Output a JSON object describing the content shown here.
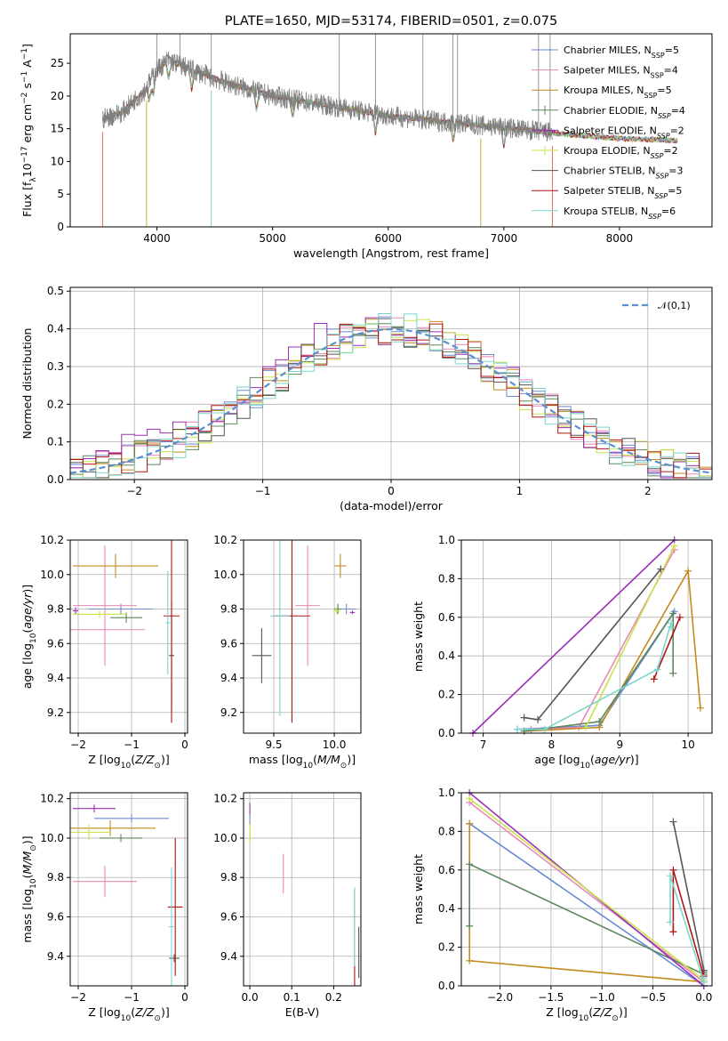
{
  "figure_title": "PLATE=1650, MJD=53174, FIBERID=0501, z=0.075",
  "series_colors": [
    "#6a8ad4",
    "#e889b6",
    "#c48a1c",
    "#5c875c",
    "#9a2fb8",
    "#c9e34a",
    "#555555",
    "#b01313",
    "#7cd5cc"
  ],
  "legend_labels": [
    "Chabrier MILES, N_SSP=5",
    "Salpeter MILES, N_SSP=4",
    "Kroupa MILES, N_SSP=5",
    "Chabrier ELODIE, N_SSP=4",
    "Salpeter ELODIE, N_SSP=2",
    "Kroupa ELODIE, N_SSP=2",
    "Chabrier STELIB, N_SSP=3",
    "Salpeter STELIB, N_SSP=5",
    "Kroupa STELIB, N_SSP=6"
  ],
  "chart_data": [
    {
      "id": "spectrum",
      "type": "line",
      "xlabel": "wavelength [Angstrom, rest frame]",
      "ylabel": "Flux [f_λ 10^-17 erg cm^-2 s^-1 A^-1]",
      "xlim": [
        3250,
        8800
      ],
      "ylim": [
        0,
        29.5
      ],
      "xticks": [
        4000,
        5000,
        6000,
        7000,
        8000
      ],
      "yticks": [
        0,
        5,
        10,
        15,
        20,
        25
      ],
      "grid": false,
      "legend": "top-right",
      "continuum_x": [
        3530,
        3700,
        3900,
        4000,
        4100,
        4300,
        4600,
        5000,
        5500,
        6000,
        6500,
        7000,
        7500,
        8000,
        8500
      ],
      "continuum_y": [
        16.5,
        17.5,
        21,
        24,
        25.5,
        24,
        22,
        20,
        18.5,
        17,
        16,
        15.2,
        14.2,
        13.5,
        13.2
      ],
      "absorption_lines": [
        3934,
        3968,
        4102,
        4300,
        4861,
        5175,
        5890,
        6563,
        7000
      ],
      "emission_lines": [
        4000,
        4200,
        4470,
        5577,
        5890,
        6300,
        6560,
        6600,
        7300,
        7400
      ]
    },
    {
      "id": "residuals",
      "type": "area",
      "xlabel": "(data-model)/error",
      "ylabel": "Normed distribution",
      "xlim": [
        -2.5,
        2.5
      ],
      "ylim": [
        0,
        0.51
      ],
      "xticks": [
        -2,
        -1,
        0,
        1,
        2
      ],
      "yticks": [
        0,
        0.1,
        0.2,
        0.3,
        0.4,
        0.5
      ],
      "grid": true,
      "legend": "top-right",
      "reference_label": "𝒩(0,1)"
    },
    {
      "id": "age-vs-Z",
      "type": "scatter",
      "xlabel": "Z [log10(Z/Z⊙)]",
      "ylabel": "age [log10(age/yr)]",
      "xlim": [
        -2.15,
        0.05
      ],
      "ylim": [
        9.08,
        10.2
      ],
      "xticks": [
        -2,
        -1,
        0
      ],
      "yticks": [
        9.2,
        9.4,
        9.6,
        9.8,
        10.0,
        10.2
      ],
      "grid": true,
      "points": [
        {
          "x": -1.2,
          "y": 9.8,
          "ex": 0.6,
          "ey": 0.03,
          "c": 0
        },
        {
          "x": -1.5,
          "y": 9.82,
          "ex": 0.6,
          "ey": 0.35,
          "c": 1
        },
        {
          "x": -1.5,
          "y": 9.68,
          "ex": 0.75,
          "ey": 0.02,
          "c": 1
        },
        {
          "x": -1.3,
          "y": 10.05,
          "ex": 0.8,
          "ey": 0.07,
          "c": 2
        },
        {
          "x": -1.1,
          "y": 9.75,
          "ex": 0.3,
          "ey": 0.03,
          "c": 3
        },
        {
          "x": -2.05,
          "y": 9.79,
          "ex": 0.05,
          "ey": 0.02,
          "c": 4
        },
        {
          "x": -1.6,
          "y": 9.77,
          "ex": 0.5,
          "ey": 0.02,
          "c": 5
        },
        {
          "x": -0.25,
          "y": 9.53,
          "ex": 0.05,
          "ey": 0.32,
          "c": 6
        },
        {
          "x": -0.25,
          "y": 9.76,
          "ex": 0.15,
          "ey": 0.62,
          "c": 7
        },
        {
          "x": -0.32,
          "y": 9.72,
          "ex": 0.04,
          "ey": 0.3,
          "c": 8
        }
      ]
    },
    {
      "id": "age-vs-mass",
      "type": "scatter",
      "xlabel": "mass [log10(M/M⊙)]",
      "ylabel": "",
      "xlim": [
        9.25,
        10.22
      ],
      "ylim": [
        9.08,
        10.2
      ],
      "xticks": [
        9.5,
        10.0
      ],
      "yticks": [
        9.2,
        9.4,
        9.6,
        9.8,
        10.0,
        10.2
      ],
      "grid": true,
      "points": [
        {
          "x": 10.1,
          "y": 9.8,
          "ex": 0.08,
          "ey": 0.03,
          "c": 0
        },
        {
          "x": 9.78,
          "y": 9.82,
          "ex": 0.1,
          "ey": 0.35,
          "c": 1
        },
        {
          "x": 10.05,
          "y": 10.05,
          "ex": 0.05,
          "ey": 0.07,
          "c": 2
        },
        {
          "x": 10.03,
          "y": 9.8,
          "ex": 0.03,
          "ey": 0.03,
          "c": 3
        },
        {
          "x": 10.15,
          "y": 9.78,
          "ex": 0.02,
          "ey": 0.01,
          "c": 4
        },
        {
          "x": 10.02,
          "y": 9.79,
          "ex": 0.03,
          "ey": 0.02,
          "c": 5
        },
        {
          "x": 9.4,
          "y": 9.53,
          "ex": 0.08,
          "ey": 0.16,
          "c": 6
        },
        {
          "x": 9.65,
          "y": 9.76,
          "ex": 0.15,
          "ey": 0.62,
          "c": 7
        },
        {
          "x": 9.55,
          "y": 9.76,
          "ex": 0.08,
          "ey": 0.58,
          "c": 8
        }
      ]
    },
    {
      "id": "mass-weight-vs-age",
      "type": "line",
      "xlabel": "age [log10(age/yr)]",
      "ylabel": "mass weight",
      "xlim": [
        6.68,
        10.35
      ],
      "ylim": [
        0,
        1.0
      ],
      "xticks": [
        7,
        8,
        9,
        10
      ],
      "yticks": [
        0,
        0.2,
        0.4,
        0.6,
        0.8,
        1.0
      ],
      "grid": true,
      "series": [
        {
          "c": 0,
          "x": [
            7.5,
            8.7,
            9.8
          ],
          "y": [
            0.02,
            0.04,
            0.63
          ]
        },
        {
          "c": 1,
          "x": [
            7.7,
            8.4,
            9.8
          ],
          "y": [
            0.02,
            0.03,
            0.95
          ]
        },
        {
          "c": 2,
          "x": [
            7.6,
            8.7,
            10.0,
            10.18
          ],
          "y": [
            0.01,
            0.03,
            0.84,
            0.13
          ]
        },
        {
          "c": 3,
          "x": [
            7.6,
            8.7,
            9.78,
            9.78
          ],
          "y": [
            0.01,
            0.06,
            0.62,
            0.31
          ]
        },
        {
          "c": 4,
          "x": [
            6.85,
            9.8
          ],
          "y": [
            0.0,
            1.0
          ]
        },
        {
          "c": 5,
          "x": [
            8.5,
            9.8
          ],
          "y": [
            0.03,
            0.97
          ]
        },
        {
          "c": 6,
          "x": [
            7.6,
            7.8,
            9.6
          ],
          "y": [
            0.08,
            0.07,
            0.85
          ]
        },
        {
          "c": 7,
          "x": [
            9.5,
            9.88
          ],
          "y": [
            0.28,
            0.6
          ]
        },
        {
          "c": 8,
          "x": [
            7.5,
            7.9,
            9.55,
            9.75,
            9.75
          ],
          "y": [
            0.02,
            0.02,
            0.33,
            0.57,
            0.55
          ]
        }
      ]
    },
    {
      "id": "mass-vs-Z",
      "type": "scatter",
      "xlabel": "Z [log10(Z/Z⊙)]",
      "ylabel": "mass [log10(M/M⊙)]",
      "xlim": [
        -2.15,
        0.05
      ],
      "ylim": [
        9.25,
        10.23
      ],
      "xticks": [
        -2,
        -1,
        0
      ],
      "yticks": [
        9.4,
        9.6,
        9.8,
        10.0,
        10.2
      ],
      "grid": true,
      "points": [
        {
          "x": -1.0,
          "y": 10.1,
          "ex": 0.7,
          "ey": 0.02,
          "c": 0
        },
        {
          "x": -1.5,
          "y": 9.78,
          "ex": 0.6,
          "ey": 0.08,
          "c": 1
        },
        {
          "x": -1.4,
          "y": 10.05,
          "ex": 0.85,
          "ey": 0.04,
          "c": 2
        },
        {
          "x": -1.2,
          "y": 10.0,
          "ex": 0.4,
          "ey": 0.02,
          "c": 3
        },
        {
          "x": -1.7,
          "y": 10.15,
          "ex": 0.4,
          "ey": 0.02,
          "c": 4
        },
        {
          "x": -1.8,
          "y": 10.03,
          "ex": 0.4,
          "ey": 0.04,
          "c": 5
        },
        {
          "x": -0.2,
          "y": 9.39,
          "ex": 0.1,
          "ey": 0.02,
          "c": 6
        },
        {
          "x": -0.18,
          "y": 9.65,
          "ex": 0.14,
          "ey": 0.35,
          "c": 7
        },
        {
          "x": -0.25,
          "y": 9.55,
          "ex": 0.05,
          "ey": 0.3,
          "c": 8
        }
      ]
    },
    {
      "id": "mass-vs-EBV",
      "type": "scatter",
      "xlabel": "E(B-V)",
      "ylabel": "",
      "xlim": [
        -0.015,
        0.265
      ],
      "ylim": [
        9.25,
        10.23
      ],
      "xticks": [
        0.0,
        0.1,
        0.2
      ],
      "yticks": [
        9.4,
        9.6,
        9.8,
        10.0,
        10.2
      ],
      "grid": true,
      "points": [
        {
          "x": 0.0,
          "y": 10.1,
          "ex": 0.0,
          "ey": 0.04,
          "c": 0
        },
        {
          "x": 0.08,
          "y": 9.82,
          "ex": 0.0,
          "ey": 0.1,
          "c": 1
        },
        {
          "x": 0.0,
          "y": 10.05,
          "ex": 0.0,
          "ey": 0.03,
          "c": 2
        },
        {
          "x": 0.0,
          "y": 10.0,
          "ex": 0.0,
          "ey": 0.02,
          "c": 3
        },
        {
          "x": 0.0,
          "y": 10.15,
          "ex": 0.0,
          "ey": 0.03,
          "c": 4
        },
        {
          "x": 0.0,
          "y": 10.02,
          "ex": 0.0,
          "ey": 0.05,
          "c": 5
        },
        {
          "x": 0.26,
          "y": 9.42,
          "ex": 0.0,
          "ey": 0.13,
          "c": 6
        },
        {
          "x": 0.25,
          "y": 9.48,
          "ex": 0.0,
          "ey": 0.26,
          "c": 7
        },
        {
          "x": 0.25,
          "y": 9.55,
          "ex": 0.0,
          "ey": 0.2,
          "c": 8
        }
      ]
    },
    {
      "id": "mass-weight-vs-Z",
      "type": "line",
      "xlabel": "Z [log10(Z/Z⊙)]",
      "ylabel": "mass weight",
      "xlim": [
        -2.38,
        0.08
      ],
      "ylim": [
        0,
        1.0
      ],
      "xticks": [
        -2.0,
        -1.5,
        -1.0,
        -0.5,
        0.0
      ],
      "yticks": [
        0,
        0.2,
        0.4,
        0.6,
        0.8,
        1.0
      ],
      "grid": true,
      "series": [
        {
          "c": 0,
          "x": [
            -2.3,
            0.0
          ],
          "y": [
            0.84,
            0.0
          ]
        },
        {
          "c": 1,
          "x": [
            -2.3,
            0.0
          ],
          "y": [
            0.95,
            0.02
          ]
        },
        {
          "c": 2,
          "x": [
            -2.3,
            -2.3,
            0.0
          ],
          "y": [
            0.84,
            0.13,
            0.02
          ]
        },
        {
          "c": 3,
          "x": [
            -2.3,
            -2.3,
            0.0
          ],
          "y": [
            0.31,
            0.63,
            0.06
          ]
        },
        {
          "c": 4,
          "x": [
            -2.3,
            0.0
          ],
          "y": [
            1.0,
            0.0
          ]
        },
        {
          "c": 5,
          "x": [
            -2.3,
            0.0
          ],
          "y": [
            0.97,
            0.03
          ]
        },
        {
          "c": 6,
          "x": [
            -0.3,
            0.0,
            0.0
          ],
          "y": [
            0.85,
            0.08,
            0.07
          ]
        },
        {
          "c": 7,
          "x": [
            -0.3,
            -0.3,
            0.0
          ],
          "y": [
            0.28,
            0.6,
            0.05
          ]
        },
        {
          "c": 8,
          "x": [
            -0.33,
            -0.33,
            0.0,
            0.0
          ],
          "y": [
            0.33,
            0.57,
            0.02,
            0.04
          ]
        }
      ]
    }
  ]
}
